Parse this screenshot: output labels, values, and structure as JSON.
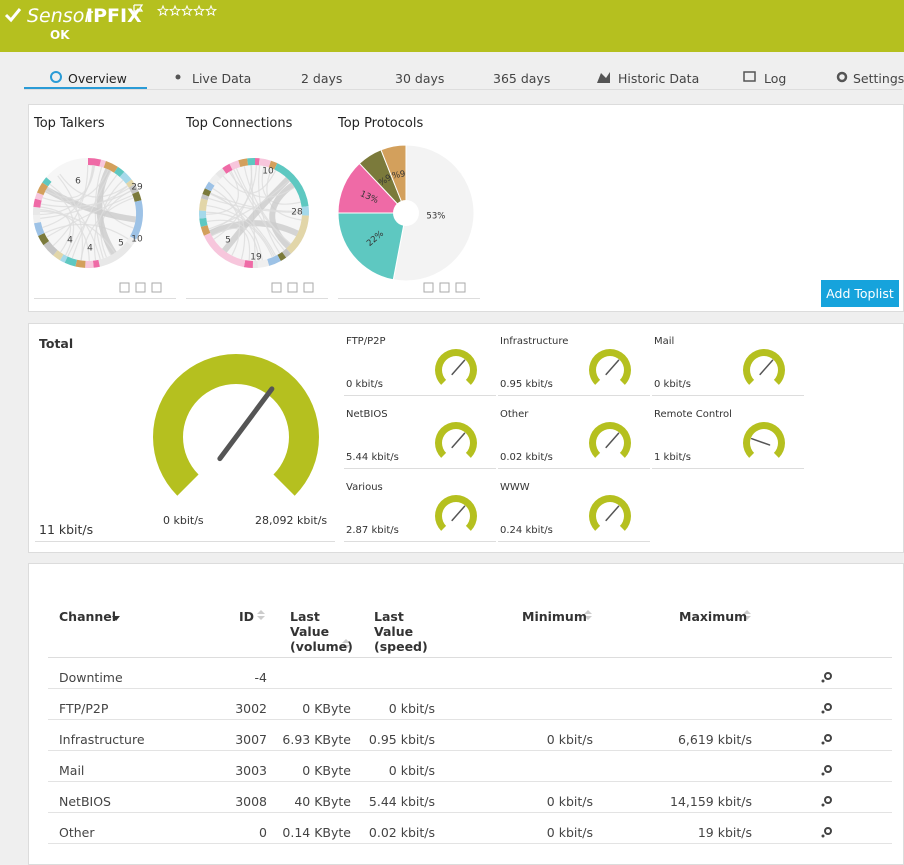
{
  "header": {
    "title_prefix": "Sensor",
    "title": "IPFIX",
    "status": "OK"
  },
  "tabs": [
    "Overview",
    "Live Data",
    "2  days",
    "30  days",
    "365  days",
    "Historic Data",
    "Log",
    "Settings"
  ],
  "toplists": [
    {
      "title": "Top Talkers",
      "labels": [
        29,
        10,
        6,
        5,
        4,
        4
      ]
    },
    {
      "title": "Top Connections",
      "labels": [
        10,
        28,
        19,
        5
      ]
    },
    {
      "title": "Top Protocols",
      "values": [
        53,
        22,
        13,
        6,
        6
      ],
      "value_labels": [
        "53%",
        "22%",
        "13%",
        "6%",
        "6%"
      ],
      "colors": [
        "#f3f3f3",
        "#5ec8c1",
        "#ef6aa6",
        "#7b7a3b",
        "#d3a05c"
      ]
    }
  ],
  "add_toplist": "Add Toplist",
  "total": {
    "title": "Total",
    "value": "11 kbit/s",
    "min": "0 kbit/s",
    "max": "28,092 kbit/s"
  },
  "gauges": [
    {
      "name": "FTP/P2P",
      "value": "0 kbit/s"
    },
    {
      "name": "Infrastructure",
      "value": "0.95 kbit/s"
    },
    {
      "name": "Mail",
      "value": "0 kbit/s"
    },
    {
      "name": "NetBIOS",
      "value": "5.44 kbit/s"
    },
    {
      "name": "Other",
      "value": "0.02 kbit/s"
    },
    {
      "name": "Remote Control",
      "value": "1 kbit/s"
    },
    {
      "name": "Various",
      "value": "2.87 kbit/s"
    },
    {
      "name": "WWW",
      "value": "0.24 kbit/s"
    }
  ],
  "table": {
    "columns": [
      "Channel",
      "ID",
      "Last Value (volume)",
      "Last Value (speed)",
      "Minimum",
      "Maximum"
    ],
    "rows": [
      [
        "Downtime",
        "-4",
        "",
        "",
        "",
        ""
      ],
      [
        "FTP/P2P",
        "3002",
        "0 KByte",
        "0 kbit/s",
        "",
        ""
      ],
      [
        "Infrastructure",
        "3007",
        "6.93 KByte",
        "0.95 kbit/s",
        "0 kbit/s",
        "6,619 kbit/s"
      ],
      [
        "Mail",
        "3003",
        "0 KByte",
        "0 kbit/s",
        "",
        ""
      ],
      [
        "NetBIOS",
        "3008",
        "40 KByte",
        "5.44 kbit/s",
        "0 kbit/s",
        "14,159 kbit/s"
      ],
      [
        "Other",
        "0",
        "0.14 KByte",
        "0.02 kbit/s",
        "0 kbit/s",
        "19 kbit/s"
      ]
    ]
  }
}
